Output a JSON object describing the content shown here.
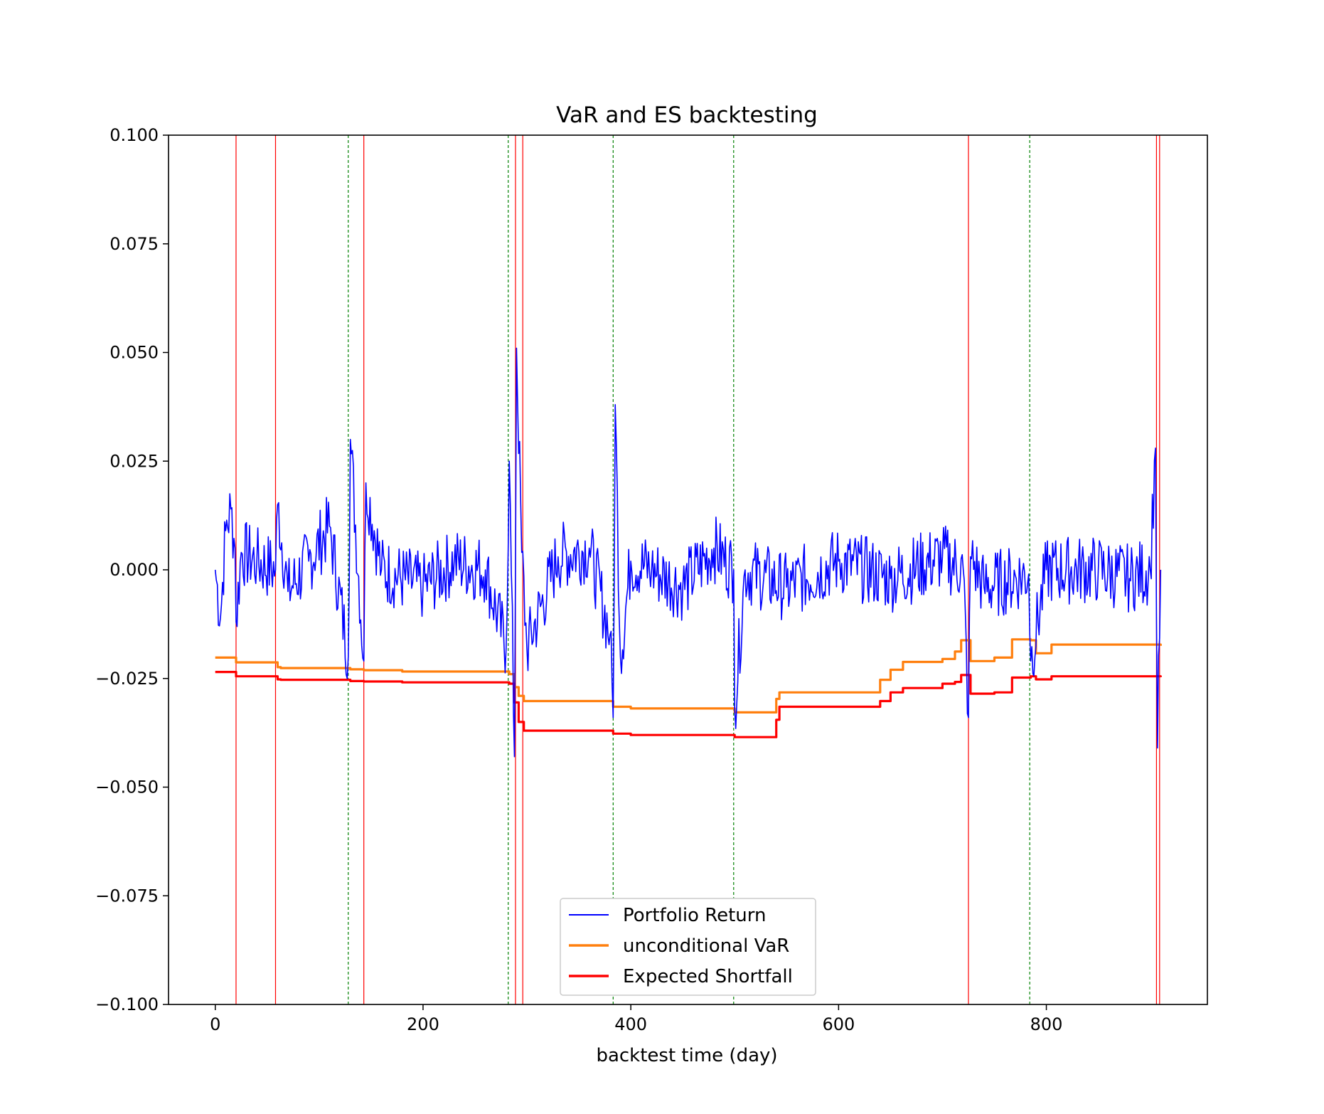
{
  "chart_data": {
    "type": "line",
    "title": "VaR and ES backtesting",
    "xlabel": "backtest time (day)",
    "ylabel": "",
    "xlim": [
      -45,
      955
    ],
    "ylim": [
      -0.1,
      0.1
    ],
    "xticks": [
      0,
      200,
      400,
      600,
      800
    ],
    "xtick_labels": [
      "0",
      "200",
      "400",
      "600",
      "800"
    ],
    "yticks": [
      0.1,
      0.075,
      0.05,
      0.025,
      0.0,
      -0.025,
      -0.05,
      -0.075,
      -0.1
    ],
    "ytick_labels": [
      "0.100",
      "0.075",
      "0.050",
      "0.025",
      "0.000",
      "−0.025",
      "−0.050",
      "−0.075",
      "−0.100"
    ],
    "grid": false,
    "legend_position": "lower-center",
    "series": [
      {
        "name": "Portfolio Return",
        "color": "#0000ff",
        "style": "noisy",
        "noise_amplitude": 0.008,
        "x": [
          0,
          5,
          10,
          15,
          19,
          20,
          25,
          40,
          58,
          60,
          70,
          90,
          110,
          128,
          130,
          143,
          145,
          160,
          200,
          230,
          260,
          280,
          283,
          288,
          290,
          295,
          300,
          330,
          360,
          380,
          383,
          385,
          390,
          400,
          420,
          450,
          480,
          499,
          500,
          510,
          550,
          600,
          650,
          700,
          720,
          725,
          727,
          740,
          783,
          785,
          800,
          850,
          880,
          900,
          905,
          907,
          910
        ],
        "y": [
          0.0,
          -0.011,
          0.009,
          0.014,
          0.005,
          -0.012,
          0.004,
          0.002,
          0.0,
          0.015,
          -0.005,
          0.002,
          0.01,
          -0.02,
          0.03,
          -0.021,
          0.02,
          0.0,
          -0.004,
          0.002,
          0.0,
          -0.018,
          0.025,
          -0.043,
          0.051,
          0.004,
          -0.018,
          0.003,
          0.005,
          -0.015,
          -0.034,
          0.038,
          -0.02,
          0.002,
          0.0,
          -0.004,
          0.005,
          0.0,
          -0.032,
          0.0,
          -0.004,
          0.002,
          -0.002,
          0.003,
          0.0,
          -0.034,
          0.003,
          -0.004,
          -0.001,
          -0.021,
          0.0,
          0.0,
          -0.002,
          0.0,
          0.028,
          -0.041,
          0.0
        ]
      },
      {
        "name": "unconditional VaR",
        "color": "#ff7f0e",
        "style": "step",
        "x": [
          0,
          20,
          60,
          63,
          130,
          143,
          180,
          283,
          288,
          292,
          297,
          383,
          400,
          500,
          540,
          543,
          640,
          650,
          662,
          700,
          712,
          718,
          727,
          750,
          767,
          785,
          790,
          805,
          910
        ],
        "y": [
          -0.0202,
          -0.0213,
          -0.0224,
          -0.0226,
          -0.0229,
          -0.0231,
          -0.0234,
          -0.024,
          -0.027,
          -0.029,
          -0.0302,
          -0.0315,
          -0.0319,
          -0.0328,
          -0.0297,
          -0.0282,
          -0.0253,
          -0.023,
          -0.0212,
          -0.0205,
          -0.0188,
          -0.0162,
          -0.021,
          -0.0202,
          -0.016,
          -0.0162,
          -0.0192,
          -0.0172,
          -0.0175
        ]
      },
      {
        "name": "Expected Shortfall",
        "color": "#ff0000",
        "style": "step",
        "x": [
          0,
          20,
          60,
          63,
          130,
          143,
          180,
          283,
          288,
          292,
          297,
          383,
          400,
          500,
          540,
          543,
          640,
          650,
          662,
          700,
          712,
          718,
          727,
          750,
          767,
          785,
          790,
          805,
          910
        ],
        "y": [
          -0.0235,
          -0.0245,
          -0.0252,
          -0.0253,
          -0.0256,
          -0.0257,
          -0.0259,
          -0.0262,
          -0.0305,
          -0.035,
          -0.037,
          -0.0377,
          -0.038,
          -0.0385,
          -0.0345,
          -0.0315,
          -0.0302,
          -0.0282,
          -0.0272,
          -0.0262,
          -0.0258,
          -0.0242,
          -0.0285,
          -0.0282,
          -0.0248,
          -0.0245,
          -0.0252,
          -0.0245,
          -0.0247
        ]
      }
    ],
    "vlines": {
      "red": [
        20,
        58,
        143,
        289,
        296,
        725,
        906,
        909
      ],
      "green": [
        128,
        282,
        383,
        499,
        784
      ]
    }
  }
}
